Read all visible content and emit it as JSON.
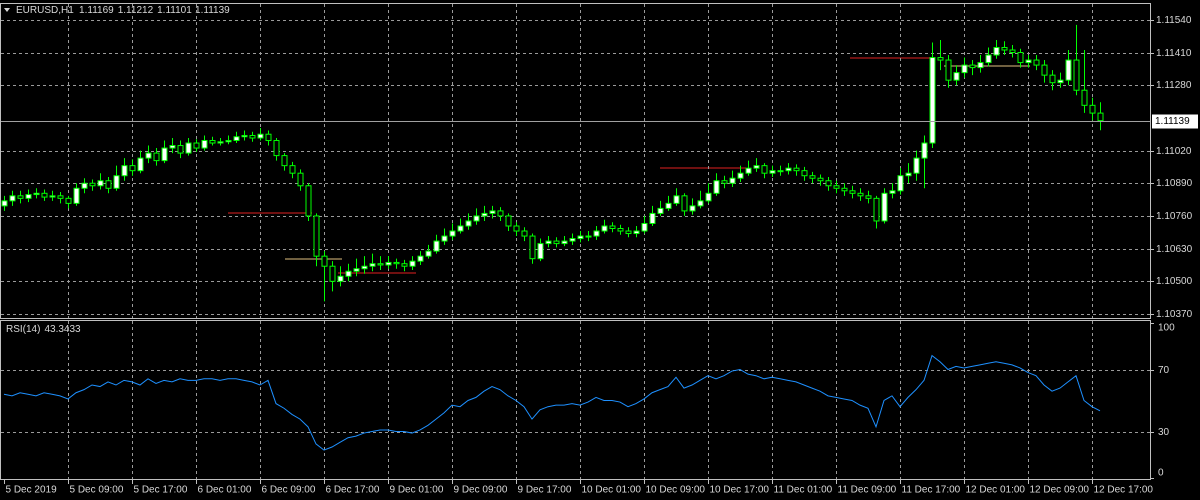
{
  "chart_data": {
    "type": "candlestick",
    "title": "EURUSD,H1",
    "bull_color": "#ffffff",
    "bear_color": "#000000",
    "wick_color": "#00ff00",
    "grid": true,
    "ylim": [
      1.10358,
      1.11599
    ],
    "yticks": [
      {
        "value": 1.1154,
        "label": "1.11540"
      },
      {
        "value": 1.1141,
        "label": "1.11410"
      },
      {
        "value": 1.1128,
        "label": "1.11280"
      },
      {
        "value": 1.1102,
        "label": "1.11020"
      },
      {
        "value": 1.1089,
        "label": "1.10890"
      },
      {
        "value": 1.1076,
        "label": "1.10760"
      },
      {
        "value": 1.1063,
        "label": "1.10630"
      },
      {
        "value": 1.105,
        "label": "1.10500"
      },
      {
        "value": 1.1037,
        "label": "1.10370"
      }
    ],
    "xticks": [
      {
        "value": 0,
        "label": "5 Dec 2019"
      },
      {
        "value": 8,
        "label": "5 Dec 09:00"
      },
      {
        "value": 16,
        "label": "5 Dec 17:00"
      },
      {
        "value": 24,
        "label": "6 Dec 01:00"
      },
      {
        "value": 32,
        "label": "6 Dec 09:00"
      },
      {
        "value": 40,
        "label": "6 Dec 17:00"
      },
      {
        "value": 48,
        "label": "9 Dec 01:00"
      },
      {
        "value": 56,
        "label": "9 Dec 09:00"
      },
      {
        "value": 64,
        "label": "9 Dec 17:00"
      },
      {
        "value": 72,
        "label": "10 Dec 01:00"
      },
      {
        "value": 80,
        "label": "10 Dec 09:00"
      },
      {
        "value": 88,
        "label": "10 Dec 17:00"
      },
      {
        "value": 96,
        "label": "11 Dec 01:00"
      },
      {
        "value": 104,
        "label": "11 Dec 09:00"
      },
      {
        "value": 112,
        "label": "11 Dec 17:00"
      },
      {
        "value": 120,
        "label": "12 Dec 01:00"
      },
      {
        "value": 128,
        "label": "12 Dec 09:00"
      },
      {
        "value": 136,
        "label": "12 Dec 17:00"
      }
    ],
    "candles": [
      [
        1.108,
        1.1084,
        1.1078,
        1.1082
      ],
      [
        1.1082,
        1.1086,
        1.108,
        1.1084
      ],
      [
        1.1084,
        1.1086,
        1.1081,
        1.1083
      ],
      [
        1.1083,
        1.10865,
        1.10815,
        1.10845
      ],
      [
        1.10845,
        1.1087,
        1.1083,
        1.1085
      ],
      [
        1.1085,
        1.10865,
        1.1082,
        1.10835
      ],
      [
        1.10835,
        1.1086,
        1.1082,
        1.1084
      ],
      [
        1.1084,
        1.10855,
        1.1081,
        1.1083
      ],
      [
        1.1083,
        1.1084,
        1.1079,
        1.1081
      ],
      [
        1.1081,
        1.1089,
        1.108,
        1.1087
      ],
      [
        1.1087,
        1.1091,
        1.1085,
        1.1089
      ],
      [
        1.1089,
        1.10905,
        1.1086,
        1.1088
      ],
      [
        1.1088,
        1.1093,
        1.10865,
        1.109
      ],
      [
        1.109,
        1.10915,
        1.1085,
        1.1087
      ],
      [
        1.1087,
        1.1096,
        1.1086,
        1.1092
      ],
      [
        1.1092,
        1.1099,
        1.109,
        1.1096
      ],
      [
        1.1096,
        1.10985,
        1.1092,
        1.1094
      ],
      [
        1.1094,
        1.1102,
        1.1093,
        1.1099
      ],
      [
        1.1099,
        1.1104,
        1.1097,
        1.1101
      ],
      [
        1.1101,
        1.1103,
        1.1096,
        1.1098
      ],
      [
        1.1098,
        1.1106,
        1.1097,
        1.1103
      ],
      [
        1.1103,
        1.1107,
        1.1101,
        1.1104
      ],
      [
        1.1104,
        1.1106,
        1.1099,
        1.1101
      ],
      [
        1.1101,
        1.1107,
        1.11,
        1.1105
      ],
      [
        1.1105,
        1.11065,
        1.11015,
        1.1103
      ],
      [
        1.1103,
        1.1108,
        1.1102,
        1.1106
      ],
      [
        1.1106,
        1.11075,
        1.1104,
        1.1105
      ],
      [
        1.1105,
        1.1107,
        1.1104,
        1.11055
      ],
      [
        1.11055,
        1.1108,
        1.11045,
        1.1106
      ],
      [
        1.1106,
        1.11095,
        1.1105,
        1.11075
      ],
      [
        1.11075,
        1.111,
        1.1106,
        1.1108
      ],
      [
        1.1108,
        1.11095,
        1.11055,
        1.1107
      ],
      [
        1.1107,
        1.1111,
        1.1106,
        1.11085
      ],
      [
        1.11085,
        1.111,
        1.1104,
        1.1106
      ],
      [
        1.1106,
        1.1107,
        1.1098,
        1.11
      ],
      [
        1.11,
        1.1101,
        1.1094,
        1.1096
      ],
      [
        1.1096,
        1.10975,
        1.1091,
        1.1093
      ],
      [
        1.1093,
        1.10945,
        1.1086,
        1.1088
      ],
      [
        1.1088,
        1.1089,
        1.1074,
        1.1076
      ],
      [
        1.1076,
        1.1077,
        1.1056,
        1.106
      ],
      [
        1.106,
        1.1062,
        1.1042,
        1.1056
      ],
      [
        1.1056,
        1.1058,
        1.1046,
        1.105
      ],
      [
        1.105,
        1.1056,
        1.1048,
        1.1052
      ],
      [
        1.1052,
        1.1057,
        1.105,
        1.1054
      ],
      [
        1.1054,
        1.1059,
        1.1052,
        1.1055
      ],
      [
        1.1055,
        1.106,
        1.1053,
        1.1056
      ],
      [
        1.1056,
        1.1061,
        1.1054,
        1.1057
      ],
      [
        1.1057,
        1.106,
        1.10545,
        1.10565
      ],
      [
        1.10565,
        1.106,
        1.1055,
        1.10575
      ],
      [
        1.10575,
        1.1059,
        1.1055,
        1.1057
      ],
      [
        1.1057,
        1.10585,
        1.1054,
        1.1056
      ],
      [
        1.1056,
        1.106,
        1.10545,
        1.1058
      ],
      [
        1.1058,
        1.1062,
        1.10565,
        1.106
      ],
      [
        1.106,
        1.10645,
        1.1059,
        1.1062
      ],
      [
        1.1062,
        1.10685,
        1.1061,
        1.1066
      ],
      [
        1.1066,
        1.1071,
        1.10645,
        1.1068
      ],
      [
        1.1068,
        1.1073,
        1.10665,
        1.107
      ],
      [
        1.107,
        1.1075,
        1.1069,
        1.1072
      ],
      [
        1.1072,
        1.1077,
        1.10705,
        1.1074
      ],
      [
        1.1074,
        1.1079,
        1.10725,
        1.1076
      ],
      [
        1.1076,
        1.108,
        1.1074,
        1.1077
      ],
      [
        1.1077,
        1.108,
        1.1075,
        1.1078
      ],
      [
        1.1078,
        1.10795,
        1.1074,
        1.1076
      ],
      [
        1.1076,
        1.1077,
        1.107,
        1.1072
      ],
      [
        1.1072,
        1.10735,
        1.1068,
        1.107
      ],
      [
        1.107,
        1.10715,
        1.1066,
        1.1068
      ],
      [
        1.1068,
        1.1069,
        1.1057,
        1.1059
      ],
      [
        1.1059,
        1.1067,
        1.1058,
        1.1065
      ],
      [
        1.1065,
        1.1068,
        1.10635,
        1.1066
      ],
      [
        1.1066,
        1.10675,
        1.10635,
        1.1065
      ],
      [
        1.1065,
        1.1068,
        1.1064,
        1.1066
      ],
      [
        1.1066,
        1.1069,
        1.10645,
        1.1067
      ],
      [
        1.1067,
        1.107,
        1.10655,
        1.1068
      ],
      [
        1.1068,
        1.107,
        1.1066,
        1.1068
      ],
      [
        1.1068,
        1.1072,
        1.10665,
        1.107
      ],
      [
        1.107,
        1.10745,
        1.1069,
        1.1072
      ],
      [
        1.1072,
        1.10735,
        1.10695,
        1.1071
      ],
      [
        1.1071,
        1.10725,
        1.10685,
        1.107
      ],
      [
        1.107,
        1.10715,
        1.10675,
        1.1069
      ],
      [
        1.1069,
        1.1072,
        1.10675,
        1.107
      ],
      [
        1.107,
        1.1076,
        1.1069,
        1.1073
      ],
      [
        1.1073,
        1.108,
        1.1072,
        1.1077
      ],
      [
        1.1077,
        1.1082,
        1.1076,
        1.1079
      ],
      [
        1.1079,
        1.1084,
        1.1078,
        1.1081
      ],
      [
        1.1081,
        1.1087,
        1.108,
        1.1084
      ],
      [
        1.1084,
        1.1085,
        1.1076,
        1.1078
      ],
      [
        1.1078,
        1.1083,
        1.10765,
        1.108
      ],
      [
        1.108,
        1.1086,
        1.1079,
        1.1082
      ],
      [
        1.1082,
        1.1089,
        1.1081,
        1.1085
      ],
      [
        1.1085,
        1.1093,
        1.1084,
        1.109
      ],
      [
        1.109,
        1.1092,
        1.1087,
        1.1089
      ],
      [
        1.1089,
        1.1094,
        1.10875,
        1.1091
      ],
      [
        1.1091,
        1.1096,
        1.10895,
        1.1093
      ],
      [
        1.1093,
        1.1098,
        1.1092,
        1.1095
      ],
      [
        1.1095,
        1.1099,
        1.10935,
        1.1096
      ],
      [
        1.1096,
        1.1097,
        1.1091,
        1.1093
      ],
      [
        1.1093,
        1.1096,
        1.10915,
        1.1094
      ],
      [
        1.1094,
        1.1096,
        1.1092,
        1.1094
      ],
      [
        1.1094,
        1.1097,
        1.10925,
        1.1095
      ],
      [
        1.1095,
        1.10965,
        1.1092,
        1.1094
      ],
      [
        1.1094,
        1.10955,
        1.109,
        1.1092
      ],
      [
        1.1092,
        1.10935,
        1.1089,
        1.1091
      ],
      [
        1.1091,
        1.10925,
        1.1088,
        1.109
      ],
      [
        1.109,
        1.10915,
        1.1086,
        1.1088
      ],
      [
        1.1088,
        1.109,
        1.1085,
        1.1087
      ],
      [
        1.1087,
        1.1089,
        1.1084,
        1.1086
      ],
      [
        1.1086,
        1.1088,
        1.1083,
        1.1085
      ],
      [
        1.1085,
        1.1087,
        1.1082,
        1.1084
      ],
      [
        1.1084,
        1.1086,
        1.1081,
        1.1083
      ],
      [
        1.1083,
        1.1084,
        1.1071,
        1.1074
      ],
      [
        1.1074,
        1.1087,
        1.1073,
        1.1085
      ],
      [
        1.1085,
        1.1089,
        1.1083,
        1.1086
      ],
      [
        1.1086,
        1.1095,
        1.10845,
        1.1092
      ],
      [
        1.1092,
        1.1097,
        1.1089,
        1.1093
      ],
      [
        1.1093,
        1.1102,
        1.109,
        1.1099
      ],
      [
        1.1099,
        1.1108,
        1.1087,
        1.1105
      ],
      [
        1.1105,
        1.1145,
        1.1103,
        1.1139
      ],
      [
        1.1139,
        1.1146,
        1.1134,
        1.1138
      ],
      [
        1.1138,
        1.114,
        1.1127,
        1.113
      ],
      [
        1.113,
        1.1136,
        1.1128,
        1.1133
      ],
      [
        1.1133,
        1.1139,
        1.1131,
        1.1136
      ],
      [
        1.1136,
        1.1138,
        1.1132,
        1.1135
      ],
      [
        1.1135,
        1.114,
        1.1133,
        1.1137
      ],
      [
        1.1137,
        1.1143,
        1.11355,
        1.114
      ],
      [
        1.114,
        1.1146,
        1.11385,
        1.1143
      ],
      [
        1.1143,
        1.11455,
        1.114,
        1.1142
      ],
      [
        1.1142,
        1.1144,
        1.1139,
        1.1141
      ],
      [
        1.1141,
        1.11425,
        1.1135,
        1.1137
      ],
      [
        1.1137,
        1.114,
        1.1135,
        1.1138
      ],
      [
        1.1138,
        1.114,
        1.1134,
        1.1136
      ],
      [
        1.1136,
        1.1138,
        1.1129,
        1.1132
      ],
      [
        1.1132,
        1.1134,
        1.1126,
        1.1129
      ],
      [
        1.1129,
        1.1133,
        1.1127,
        1.113
      ],
      [
        1.113,
        1.1142,
        1.1128,
        1.1138
      ],
      [
        1.1138,
        1.1152,
        1.1124,
        1.1126
      ],
      [
        1.1126,
        1.1142,
        1.1117,
        1.112
      ],
      [
        1.112,
        1.1123,
        1.1114,
        1.11169
      ],
      [
        1.11169,
        1.11212,
        1.11101,
        1.11139
      ]
    ],
    "rsi": {
      "name": "RSI(14)",
      "color": "#1e90ff",
      "ylim": [
        0,
        100
      ],
      "yticks": [
        0,
        30,
        70,
        100
      ],
      "values": [
        54,
        53,
        55,
        54,
        53,
        55,
        54,
        53,
        51,
        55,
        57,
        60,
        59,
        62,
        60,
        63,
        62,
        60,
        64,
        61,
        63,
        62,
        64,
        63,
        63,
        64,
        64,
        63,
        64,
        64,
        63,
        62,
        60,
        63,
        48,
        45,
        41,
        38,
        33,
        22,
        18,
        20,
        23,
        26,
        27,
        29,
        30,
        31,
        31,
        30,
        30,
        29,
        31,
        34,
        38,
        42,
        47,
        46,
        50,
        52,
        56,
        59,
        57,
        53,
        50,
        46,
        38,
        44,
        46,
        47,
        47,
        48,
        47,
        49,
        52,
        50,
        50,
        49,
        46,
        48,
        51,
        55,
        57,
        59,
        65,
        58,
        60,
        63,
        66,
        64,
        66,
        69,
        70,
        67,
        66,
        64,
        65,
        64,
        63,
        62,
        60,
        58,
        56,
        53,
        52,
        51,
        50,
        47,
        45,
        33,
        50,
        53,
        46,
        52,
        57,
        63,
        79,
        75,
        70,
        72,
        71,
        72,
        73,
        74,
        75,
        74,
        73,
        71,
        68,
        66,
        60,
        56,
        58,
        62,
        66,
        50,
        46,
        43.3433
      ]
    }
  }
}
